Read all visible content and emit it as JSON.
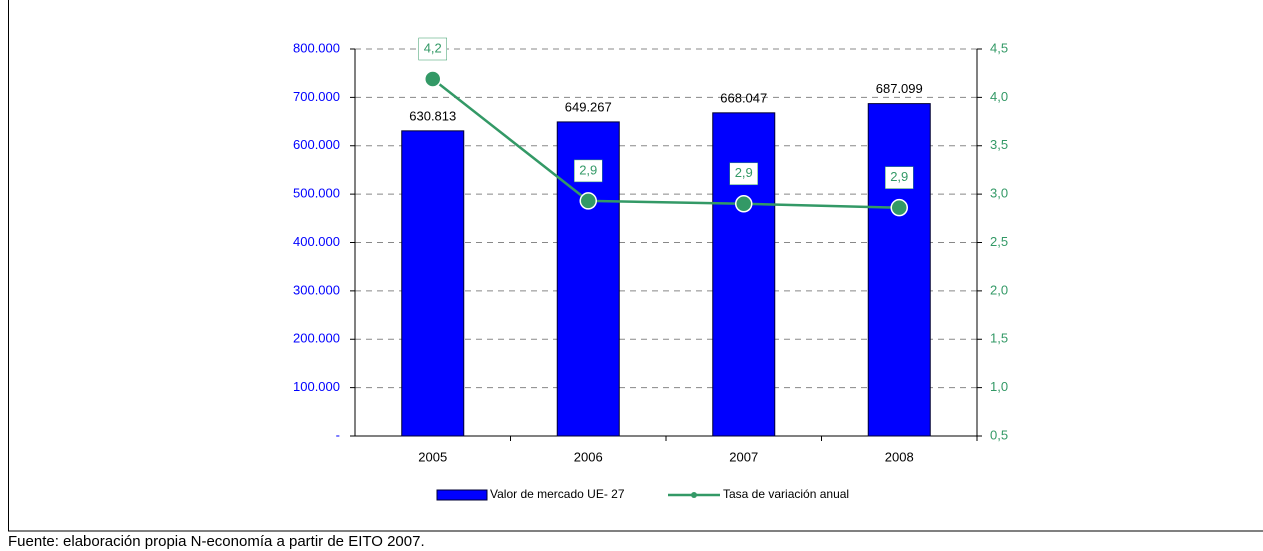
{
  "chart_data": {
    "type": "bar",
    "categories": [
      "2005",
      "2006",
      "2007",
      "2008"
    ],
    "series": [
      {
        "name": "Valor de mercado UE- 27",
        "type": "bar",
        "color": "#0000ff",
        "values": [
          630813,
          649267,
          668047,
          687099
        ],
        "value_labels": [
          "630.813",
          "649.267",
          "668.047",
          "687.099"
        ]
      },
      {
        "name": "Tasa de variación anual",
        "type": "line",
        "axis": "y2",
        "color": "#339966",
        "values": [
          4.19,
          2.93,
          2.9,
          2.86
        ],
        "value_labels": [
          "4,2",
          "2,9",
          "2,9",
          "2,9"
        ]
      }
    ],
    "ylim": [
      0,
      800000
    ],
    "yticks": [
      {
        "value": 0,
        "label": "-"
      },
      {
        "value": 100000,
        "label": "100.000"
      },
      {
        "value": 200000,
        "label": "200.000"
      },
      {
        "value": 300000,
        "label": "300.000"
      },
      {
        "value": 400000,
        "label": "400.000"
      },
      {
        "value": 500000,
        "label": "500.000"
      },
      {
        "value": 600000,
        "label": "600.000"
      },
      {
        "value": 700000,
        "label": "700.000"
      },
      {
        "value": 800000,
        "label": "800.000"
      }
    ],
    "y2lim": [
      0.5,
      4.5
    ],
    "y2ticks": [
      {
        "value": 0.5,
        "label": "0,5"
      },
      {
        "value": 1,
        "label": "1,0"
      },
      {
        "value": 1.5,
        "label": "1,5"
      },
      {
        "value": 2,
        "label": "2,0"
      },
      {
        "value": 2.5,
        "label": "2,5"
      },
      {
        "value": 3,
        "label": "3,0"
      },
      {
        "value": 3.5,
        "label": "3,5"
      },
      {
        "value": 4,
        "label": "4,0"
      },
      {
        "value": 4.5,
        "label": "4,5"
      }
    ],
    "grid": true,
    "legend": "bottom",
    "source": "Fuente: elaboración propia N-economía a partir de EITO 2007."
  }
}
